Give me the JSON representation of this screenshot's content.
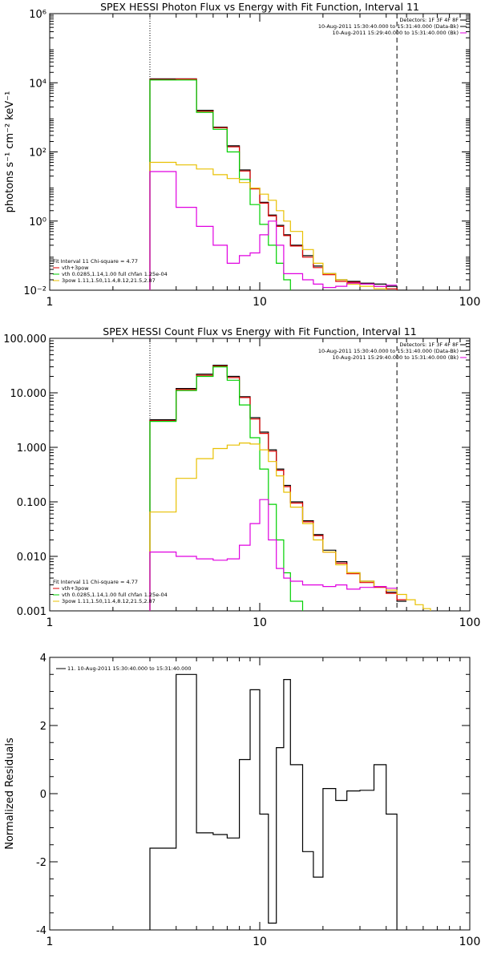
{
  "colors": {
    "data": "#000000",
    "total_fit": "#e00000",
    "thermal": "#00d000",
    "powerlaw": "#e8c000",
    "background": "#e000e0"
  },
  "chart_data": [
    {
      "type": "line",
      "title": "SPEX HESSI Photon Flux vs Energy with Fit Function, Interval 11",
      "xlabel": "",
      "ylabel": "photons s⁻¹ cm⁻² keV⁻¹",
      "log_x": true,
      "log_y": true,
      "xlim": [
        1,
        100
      ],
      "ylim": [
        0.01,
        1000000
      ],
      "x_ticks": [
        {
          "v": 1,
          "label": "1"
        },
        {
          "v": 10,
          "label": "10"
        },
        {
          "v": 100,
          "label": "100"
        }
      ],
      "y_ticks": [
        {
          "v": 0.01,
          "label": "10⁻²"
        },
        {
          "v": 1,
          "label": "10⁰"
        },
        {
          "v": 100,
          "label": "10²"
        },
        {
          "v": 10000,
          "label": "10⁴"
        },
        {
          "v": 1000000,
          "label": "10⁶"
        }
      ],
      "vlines": [
        {
          "x": 3,
          "style": "dotted"
        },
        {
          "x": 45,
          "style": "dashed"
        }
      ],
      "legend_top_right": [
        {
          "text": "Detectors: 1F 3F 4F 8F",
          "color": "#000000"
        },
        {
          "text": "10-Aug-2011 15:30:40.000 to 15:31:40.000 (Data-Bk)",
          "color": "#000000"
        },
        {
          "text": "10-Aug-2011 15:29:40.000 to 15:31:40.000 (Bk)",
          "color": "#e000e0"
        }
      ],
      "legend_bottom_left": [
        {
          "text": "Fit Interval 11    Chi-square = 4.77",
          "color": "#000000"
        },
        {
          "text": "vth+3pow",
          "color": "#e00000"
        },
        {
          "text": "vth 0.0285,1.14,1.00  full chfan 1.25e-04",
          "color": "#00d000"
        },
        {
          "text": "3pow 1.11,1.50,11.4,8.12,21.5,2.87",
          "color": "#e8c000"
        }
      ],
      "edges": [
        3,
        4,
        5,
        6,
        7,
        8,
        9,
        10,
        11,
        12,
        13,
        14,
        16,
        18,
        20,
        23,
        26,
        30,
        35,
        40,
        45,
        50
      ],
      "series": [
        {
          "key": "data",
          "color": "#000000",
          "values": [
            13000,
            13000,
            1600,
            520,
            150,
            30,
            9,
            3.5,
            1.5,
            0.75,
            0.4,
            0.2,
            0.1,
            0.05,
            0.03,
            0.02,
            0.018,
            0.016,
            0.015,
            0.013,
            0.01
          ]
        },
        {
          "key": "total_fit",
          "color": "#e00000",
          "values": [
            12500,
            12800,
            1500,
            500,
            140,
            28,
            8.5,
            3.3,
            1.4,
            0.7,
            0.38,
            0.19,
            0.09,
            0.045,
            0.028,
            0.018,
            0.017,
            0.015,
            0.013,
            0.011,
            0.009
          ]
        },
        {
          "key": "thermal",
          "color": "#00d000",
          "values": [
            12000,
            12000,
            1400,
            450,
            100,
            16,
            3,
            0.8,
            0.2,
            0.06,
            0.02,
            0.007
          ]
        },
        {
          "key": "powerlaw",
          "color": "#e8c000",
          "values": [
            50,
            42,
            32,
            22,
            17,
            13,
            9,
            6,
            4,
            2,
            1,
            0.5,
            0.15,
            0.06,
            0.03,
            0.02,
            0.015,
            0.013,
            0.011,
            0.009,
            0.0075
          ]
        },
        {
          "key": "background",
          "color": "#e000e0",
          "values": [
            27,
            2.5,
            0.7,
            0.2,
            0.06,
            0.1,
            0.12,
            0.4,
            1.0,
            0.2,
            0.03,
            0.03,
            0.02,
            0.015,
            0.012,
            0.013,
            0.016,
            0.015,
            0.013,
            0.014
          ]
        }
      ]
    },
    {
      "type": "line",
      "title": "SPEX HESSI Count Flux vs Energy with Fit Function, Interval 11",
      "xlabel": "",
      "ylabel": "",
      "log_x": true,
      "log_y": true,
      "xlim": [
        1,
        100
      ],
      "ylim": [
        0.001,
        100
      ],
      "x_ticks": [
        {
          "v": 1,
          "label": "1"
        },
        {
          "v": 10,
          "label": "10"
        },
        {
          "v": 100,
          "label": "100"
        }
      ],
      "y_ticks": [
        {
          "v": 0.001,
          "label": "0.001"
        },
        {
          "v": 0.01,
          "label": "0.010"
        },
        {
          "v": 0.1,
          "label": "0.100"
        },
        {
          "v": 1,
          "label": "1.000"
        },
        {
          "v": 10,
          "label": "10.000"
        },
        {
          "v": 100,
          "label": "100.000"
        }
      ],
      "vlines": [
        {
          "x": 3,
          "style": "dotted"
        },
        {
          "x": 45,
          "style": "dashed"
        }
      ],
      "legend_top_right": [
        {
          "text": "Detectors: 1F 3F 4F 8F",
          "color": "#000000"
        },
        {
          "text": "10-Aug-2011 15:30:40.000 to 15:31:40.000 (Data-Bk)",
          "color": "#000000"
        },
        {
          "text": "10-Aug-2011 15:29:40.000 to 15:31:40.000 (Bk)",
          "color": "#e000e0"
        }
      ],
      "legend_bottom_left": [
        {
          "text": "Fit Interval 11    Chi-square = 4.77",
          "color": "#000000"
        },
        {
          "text": "vth+3pow",
          "color": "#e00000"
        },
        {
          "text": "vth 0.0285,1.14,1.00  full chfan 1.25e-04",
          "color": "#00d000"
        },
        {
          "text": "3pow 1.11,1.50,11.4,8.12,21.5,2.87",
          "color": "#e8c000"
        }
      ],
      "edges": [
        3,
        4,
        5,
        6,
        7,
        8,
        9,
        10,
        11,
        12,
        13,
        14,
        16,
        18,
        20,
        23,
        26,
        30,
        35,
        40,
        45,
        50,
        55,
        60,
        65,
        70
      ],
      "series": [
        {
          "key": "data",
          "color": "#000000",
          "values": [
            3.2,
            12,
            22,
            32,
            20,
            8.5,
            3.5,
            1.9,
            0.9,
            0.4,
            0.2,
            0.1,
            0.045,
            0.025,
            0.013,
            0.008,
            0.005,
            0.0035,
            0.0028,
            0.0022,
            0.0015
          ]
        },
        {
          "key": "total_fit",
          "color": "#e00000",
          "values": [
            3.1,
            11.5,
            21,
            31,
            19,
            8.2,
            3.3,
            1.8,
            0.85,
            0.38,
            0.19,
            0.095,
            0.043,
            0.024,
            0.012,
            0.0075,
            0.0048,
            0.0033,
            0.0027,
            0.0021,
            0.0016
          ]
        },
        {
          "key": "thermal",
          "color": "#00d000",
          "values": [
            3.0,
            11,
            20,
            30,
            17,
            6,
            1.5,
            0.4,
            0.09,
            0.02,
            0.005,
            0.0015,
            0.0005
          ]
        },
        {
          "key": "powerlaw",
          "color": "#e8c000",
          "values": [
            0.065,
            0.27,
            0.62,
            0.95,
            1.1,
            1.2,
            1.15,
            0.9,
            0.55,
            0.3,
            0.15,
            0.08,
            0.04,
            0.02,
            0.012,
            0.007,
            0.005,
            0.0035,
            0.0028,
            0.0024,
            0.002,
            0.0016,
            0.0013,
            0.0011,
            0.0009
          ]
        },
        {
          "key": "background",
          "color": "#e000e0",
          "values": [
            0.012,
            0.01,
            0.009,
            0.0085,
            0.009,
            0.016,
            0.04,
            0.11,
            0.02,
            0.006,
            0.004,
            0.0035,
            0.003,
            0.003,
            0.0028,
            0.003,
            0.0025,
            0.0027,
            0.0028,
            0.0026
          ]
        }
      ]
    },
    {
      "type": "line",
      "title": "",
      "xlabel": "",
      "ylabel": "Normalized Residuals",
      "log_x": true,
      "log_y": false,
      "xlim": [
        1,
        100
      ],
      "ylim": [
        -4,
        4
      ],
      "x_ticks": [
        {
          "v": 1,
          "label": "1"
        },
        {
          "v": 10,
          "label": "10"
        },
        {
          "v": 100,
          "label": "100"
        }
      ],
      "y_ticks": [
        {
          "v": -4,
          "label": "-4"
        },
        {
          "v": -2,
          "label": "-2"
        },
        {
          "v": 0,
          "label": "0"
        },
        {
          "v": 2,
          "label": "2"
        },
        {
          "v": 4,
          "label": "4"
        }
      ],
      "legend_top_left": [
        {
          "text": "11. 10-Aug-2011 15:30:40.000 to 15:31:40.000",
          "color": "#000000"
        }
      ],
      "edges": [
        3,
        4,
        5,
        6,
        7,
        8,
        9,
        10,
        11,
        12,
        13,
        14,
        16,
        18,
        20,
        23,
        26,
        30,
        35,
        40,
        45
      ],
      "series": [
        {
          "key": "residuals",
          "color": "#000000",
          "values": [
            -1.6,
            3.5,
            -1.15,
            -1.2,
            -1.3,
            1.0,
            3.05,
            -0.6,
            -3.8,
            1.35,
            3.35,
            0.85,
            -1.7,
            -2.45,
            0.15,
            -0.2,
            0.08,
            0.1,
            0.85,
            -0.6
          ]
        }
      ]
    }
  ]
}
